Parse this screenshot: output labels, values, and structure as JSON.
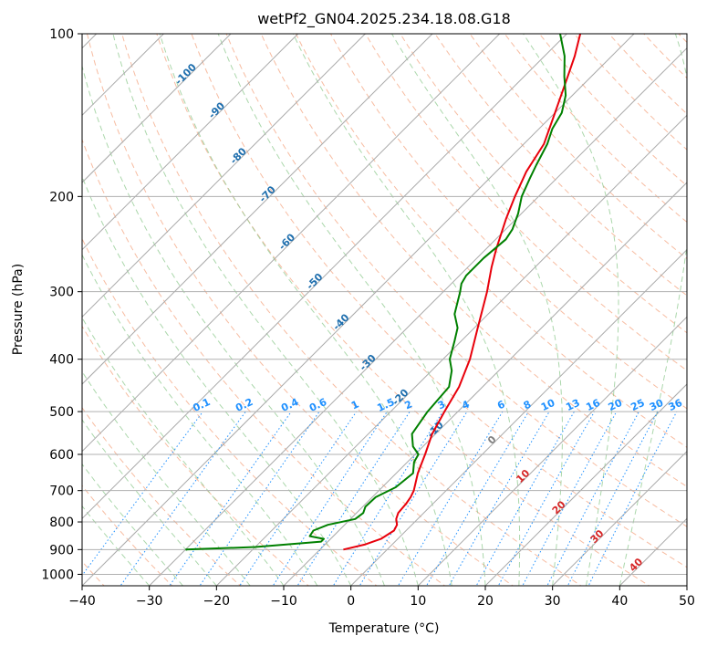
{
  "chart_data": {
    "type": "line",
    "title": "wetPf2_GN04.2025.234.18.08.G18",
    "xlabel": "Temperature (°C)",
    "ylabel": "Pressure (hPa)",
    "xlim": [
      -40,
      50
    ],
    "ylim": [
      1050,
      100
    ],
    "y_scale": "log",
    "grid": true,
    "x_ticks": [
      -40,
      -30,
      -20,
      -10,
      0,
      10,
      20,
      30,
      40,
      50
    ],
    "y_ticks": [
      1000,
      900,
      800,
      700,
      600,
      500,
      400,
      300,
      200,
      100
    ],
    "series": [
      {
        "color": "#e8000b",
        "points": [
          {
            "p": 900,
            "t": -6.5
          },
          {
            "p": 880,
            "t": -4.0
          },
          {
            "p": 860,
            "t": -2.5
          },
          {
            "p": 830,
            "t": -1.8
          },
          {
            "p": 810,
            "t": -2.2
          },
          {
            "p": 790,
            "t": -3.2
          },
          {
            "p": 770,
            "t": -3.8
          },
          {
            "p": 740,
            "t": -4.0
          },
          {
            "p": 720,
            "t": -4.3
          },
          {
            "p": 700,
            "t": -4.8
          },
          {
            "p": 650,
            "t": -6.8
          },
          {
            "p": 600,
            "t": -8.5
          },
          {
            "p": 550,
            "t": -10.5
          },
          {
            "p": 500,
            "t": -12.0
          },
          {
            "p": 450,
            "t": -13.5
          },
          {
            "p": 400,
            "t": -16.0
          },
          {
            "p": 350,
            "t": -19.5
          },
          {
            "p": 300,
            "t": -23.5
          },
          {
            "p": 270,
            "t": -26.5
          },
          {
            "p": 250,
            "t": -28.5
          },
          {
            "p": 220,
            "t": -31.5
          },
          {
            "p": 200,
            "t": -33.5
          },
          {
            "p": 180,
            "t": -35.5
          },
          {
            "p": 160,
            "t": -37.0
          },
          {
            "p": 140,
            "t": -40.0
          },
          {
            "p": 120,
            "t": -43.5
          },
          {
            "p": 110,
            "t": -45.5
          },
          {
            "p": 100,
            "t": -48.0
          }
        ]
      },
      {
        "color": "#008000",
        "points": [
          {
            "p": 900,
            "t": -30.0
          },
          {
            "p": 890,
            "t": -20.0
          },
          {
            "p": 870,
            "t": -11.0
          },
          {
            "p": 860,
            "t": -11.0
          },
          {
            "p": 850,
            "t": -13.5
          },
          {
            "p": 830,
            "t": -13.8
          },
          {
            "p": 810,
            "t": -12.5
          },
          {
            "p": 790,
            "t": -9.3
          },
          {
            "p": 770,
            "t": -9.0
          },
          {
            "p": 750,
            "t": -9.6
          },
          {
            "p": 720,
            "t": -9.5
          },
          {
            "p": 690,
            "t": -8.0
          },
          {
            "p": 650,
            "t": -7.5
          },
          {
            "p": 620,
            "t": -9.0
          },
          {
            "p": 600,
            "t": -9.5
          },
          {
            "p": 580,
            "t": -11.5
          },
          {
            "p": 550,
            "t": -13.5
          },
          {
            "p": 500,
            "t": -14.5
          },
          {
            "p": 450,
            "t": -15.0
          },
          {
            "p": 420,
            "t": -17.0
          },
          {
            "p": 400,
            "t": -19.0
          },
          {
            "p": 370,
            "t": -21.0
          },
          {
            "p": 350,
            "t": -22.5
          },
          {
            "p": 330,
            "t": -25.0
          },
          {
            "p": 300,
            "t": -27.5
          },
          {
            "p": 290,
            "t": -28.5
          },
          {
            "p": 280,
            "t": -29.0
          },
          {
            "p": 260,
            "t": -29.0
          },
          {
            "p": 240,
            "t": -28.5
          },
          {
            "p": 230,
            "t": -29.0
          },
          {
            "p": 215,
            "t": -30.5
          },
          {
            "p": 200,
            "t": -32.5
          },
          {
            "p": 185,
            "t": -34.0
          },
          {
            "p": 175,
            "t": -35.0
          },
          {
            "p": 160,
            "t": -36.5
          },
          {
            "p": 150,
            "t": -38.0
          },
          {
            "p": 140,
            "t": -39.0
          },
          {
            "p": 130,
            "t": -41.0
          },
          {
            "p": 120,
            "t": -44.0
          },
          {
            "p": 110,
            "t": -47.0
          },
          {
            "p": 100,
            "t": -51.0
          }
        ]
      }
    ],
    "mixing_ratio_labels": [
      "0.1",
      "0.2",
      "0.4",
      "0.6",
      "1",
      "1.5",
      "2",
      "3",
      "4",
      "6",
      "8",
      "10",
      "13",
      "16",
      "20",
      "25",
      "30",
      "36"
    ],
    "mixing_ratio_values": [
      0.1,
      0.2,
      0.4,
      0.6,
      1,
      1.5,
      2,
      3,
      4,
      6,
      8,
      10,
      13,
      16,
      20,
      25,
      30,
      36
    ],
    "mixing_ratio_label_pressure": 500,
    "isotherm_labels": [
      {
        "text": "-100",
        "t": -100,
        "p": 120
      },
      {
        "text": "-90",
        "t": -90,
        "p": 140
      },
      {
        "text": "-80",
        "t": -80,
        "p": 170
      },
      {
        "text": "-70",
        "t": -70,
        "p": 200
      },
      {
        "text": "-60",
        "t": -60,
        "p": 245
      },
      {
        "text": "-50",
        "t": -50,
        "p": 290
      },
      {
        "text": "-40",
        "t": -40,
        "p": 345
      },
      {
        "text": "-30",
        "t": -30,
        "p": 410
      },
      {
        "text": "-20",
        "t": -20,
        "p": 475
      },
      {
        "text": "-10",
        "t": -10,
        "p": 545
      }
    ],
    "warm_isotherm_labels": [
      {
        "text": "0",
        "t": 0,
        "p": 570
      },
      {
        "text": "10",
        "t": 10,
        "p": 665
      },
      {
        "text": "20",
        "t": 20,
        "p": 760
      },
      {
        "text": "30",
        "t": 30,
        "p": 860
      },
      {
        "text": "40",
        "t": 40,
        "p": 970
      }
    ],
    "colors": {
      "temperature": "#e8000b",
      "dewpoint": "#008000",
      "isotherm": "#a9a9a9",
      "dry_adiabat": "#f4a582",
      "moist_adiabat": "#8fc98f",
      "mixing_ratio": "#1e90ff",
      "cold_label": "#1f6fae",
      "warm_label": "#d62728",
      "zero_label": "#808080"
    }
  }
}
